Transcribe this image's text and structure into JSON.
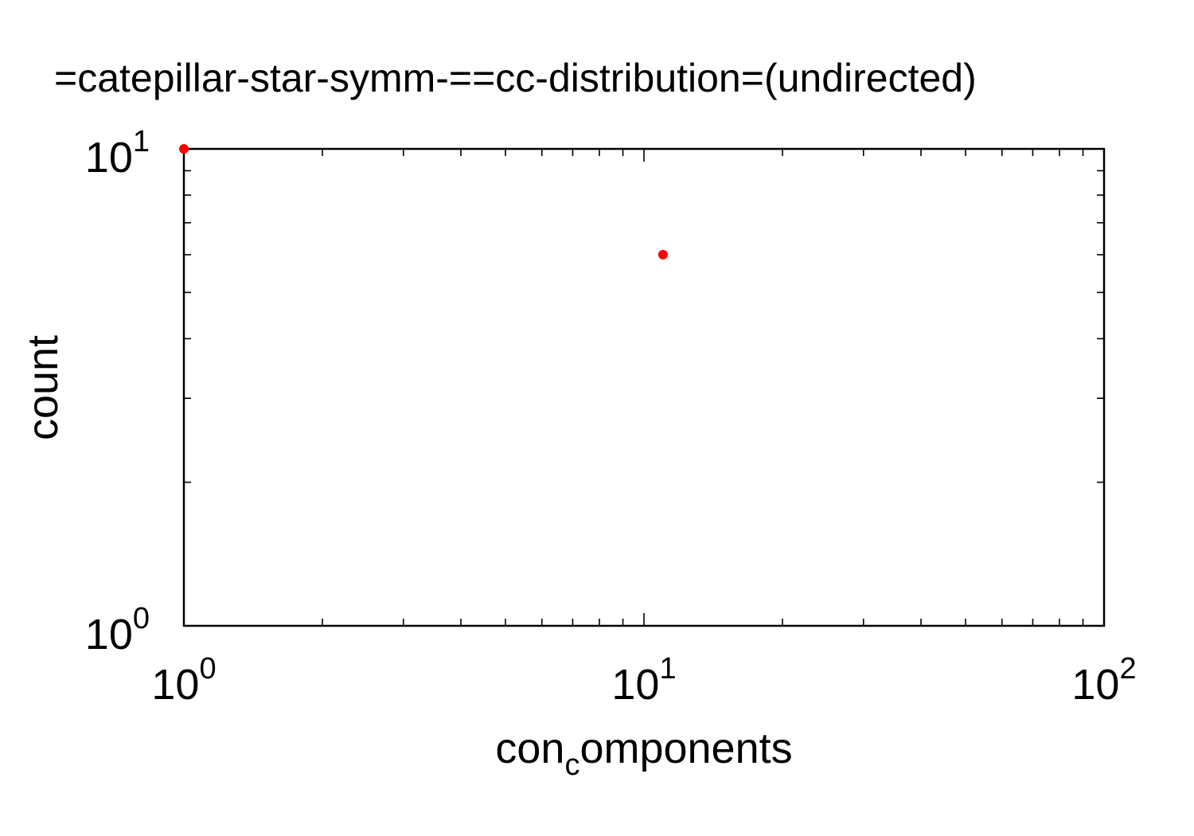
{
  "chart_data": {
    "type": "scatter",
    "title": "=catepillar-star-symm-==cc-distribution=(undirected)",
    "xlabel": {
      "base": "con",
      "sub": "c",
      "rest": "omponents"
    },
    "ylabel": "count",
    "xscale": "log",
    "yscale": "log",
    "xlim": [
      1,
      100
    ],
    "ylim": [
      1,
      10
    ],
    "grid": false,
    "marker_color": "#ff0000",
    "x_ticks": [
      {
        "base": "10",
        "exp": "0",
        "value": 1
      },
      {
        "base": "10",
        "exp": "1",
        "value": 10
      },
      {
        "base": "10",
        "exp": "2",
        "value": 100
      }
    ],
    "y_ticks": [
      {
        "base": "10",
        "exp": "0",
        "value": 1
      },
      {
        "base": "10",
        "exp": "1",
        "value": 10
      }
    ],
    "points": [
      {
        "x": 1,
        "y": 10
      },
      {
        "x": 11,
        "y": 6
      }
    ]
  }
}
